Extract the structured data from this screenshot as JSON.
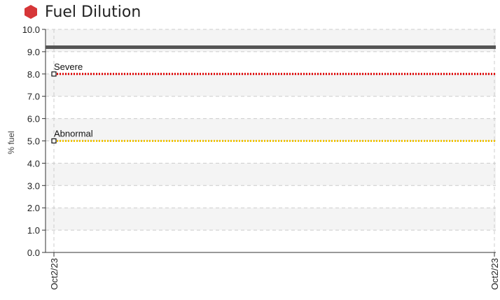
{
  "title": "Fuel Dilution",
  "title_icon": "red-hexagon-icon",
  "colors": {
    "title_icon": "#d63638",
    "severe": "#e00000",
    "abnormal": "#f2c400",
    "baseline": "#555555",
    "grid": "#cccccc",
    "band": "#f4f4f4"
  },
  "chart_data": {
    "type": "line",
    "title": "Fuel Dilution",
    "ylabel": "% fuel",
    "xlabel": "",
    "ylim": [
      0,
      10
    ],
    "yticks": [
      "0.0",
      "1.0",
      "2.0",
      "3.0",
      "4.0",
      "5.0",
      "6.0",
      "7.0",
      "8.0",
      "9.0",
      "10.0"
    ],
    "x": [
      "Oct2/23",
      "Oct2/23"
    ],
    "grid": true,
    "series": [
      {
        "name": "",
        "style": "solid",
        "color": "#555555",
        "values": [
          9.2,
          9.2
        ]
      }
    ],
    "thresholds": [
      {
        "label": "Severe",
        "value": 8.0,
        "color": "#e00000",
        "style": "dotted"
      },
      {
        "label": "Abnormal",
        "value": 5.0,
        "color": "#f2c400",
        "style": "dotted"
      }
    ]
  }
}
